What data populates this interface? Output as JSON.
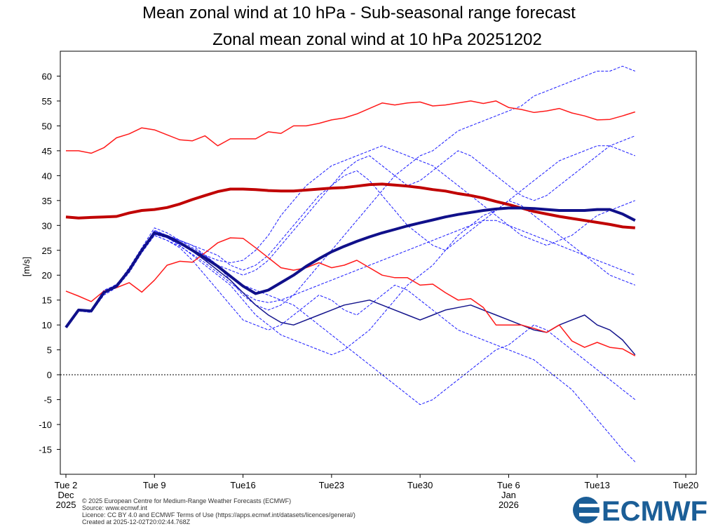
{
  "chart_data": {
    "type": "line",
    "title": "Mean zonal wind at 10 hPa - Sub-seasonal range forecast",
    "subtitle": "Zonal mean zonal wind at 10 hPa 20251202",
    "y_label": "[m/s]",
    "x": [
      "2025-12-02",
      "2025-12-03",
      "2025-12-04",
      "2025-12-05",
      "2025-12-06",
      "2025-12-07",
      "2025-12-08",
      "2025-12-09",
      "2025-12-10",
      "2025-12-11",
      "2025-12-12",
      "2025-12-13",
      "2025-12-14",
      "2025-12-15",
      "2025-12-16",
      "2025-12-17",
      "2025-12-18",
      "2025-12-19",
      "2025-12-20",
      "2025-12-21",
      "2025-12-22",
      "2025-12-23",
      "2025-12-24",
      "2025-12-25",
      "2025-12-26",
      "2025-12-27",
      "2025-12-28",
      "2025-12-29",
      "2025-12-30",
      "2025-12-31",
      "2026-01-01",
      "2026-01-02",
      "2026-01-03",
      "2026-01-04",
      "2026-01-05",
      "2026-01-06",
      "2026-01-07",
      "2026-01-08",
      "2026-01-09",
      "2026-01-10",
      "2026-01-11",
      "2026-01-12",
      "2026-01-13",
      "2026-01-14",
      "2026-01-15",
      "2026-01-16"
    ],
    "xlim": [
      "2025-12-02",
      "2026-01-20"
    ],
    "xticks": [
      {
        "value": "2025-12-02",
        "label": "Tue 2"
      },
      {
        "value": "2025-12-09",
        "label": "Tue 9"
      },
      {
        "value": "2025-12-16",
        "label": "Tue16"
      },
      {
        "value": "2025-12-23",
        "label": "Tue23"
      },
      {
        "value": "2025-12-30",
        "label": "Tue30"
      },
      {
        "value": "2026-01-06",
        "label": "Tue 6"
      },
      {
        "value": "2026-01-13",
        "label": "Tue13"
      },
      {
        "value": "2026-01-20",
        "label": "Tue20"
      }
    ],
    "x_month_labels": [
      {
        "value": "2025-12-02",
        "label": "Dec"
      },
      {
        "value": "2026-01-06",
        "label": "Jan"
      }
    ],
    "x_year_labels": [
      {
        "value": "2025-12-02",
        "label": "2025"
      },
      {
        "value": "2026-01-06",
        "label": "2026"
      }
    ],
    "ylim": [
      -20,
      65
    ],
    "yticks": [
      -15,
      -10,
      -5,
      0,
      5,
      10,
      15,
      20,
      25,
      30,
      35,
      40,
      45,
      50,
      55,
      60
    ],
    "zero_line": true,
    "series": [
      {
        "color": "#1a1aff",
        "width": 1,
        "dashed": true,
        "values": [
          9.5,
          13,
          13,
          16.8,
          18,
          21.5,
          25.5,
          29.5,
          28.5,
          27,
          26,
          24,
          22,
          19,
          16,
          14,
          13,
          14,
          16,
          19,
          22,
          25,
          28,
          31,
          34,
          37,
          40,
          42,
          44,
          45,
          47,
          49,
          50,
          51,
          52,
          53,
          54,
          56,
          57,
          58,
          59,
          60,
          61,
          61,
          62,
          61
        ]
      },
      {
        "color": "#1a1aff",
        "width": 1,
        "dashed": true,
        "values": [
          9.5,
          12.8,
          12.5,
          16,
          17.5,
          20.5,
          24.5,
          28,
          27,
          25.5,
          23,
          20,
          17,
          14,
          11,
          10,
          9,
          10,
          12,
          14,
          16,
          15,
          13,
          12,
          14,
          16,
          18,
          17,
          15,
          13,
          11,
          9,
          8,
          7,
          6,
          5,
          4,
          3,
          1,
          -1,
          -3,
          -6,
          -9,
          -12,
          -15,
          -17.5
        ]
      },
      {
        "color": "#1a1aff",
        "width": 1,
        "dashed": true,
        "values": [
          9.5,
          13,
          13,
          17,
          18,
          21,
          25,
          29,
          28,
          27,
          26,
          25,
          24,
          22,
          21,
          22,
          24,
          27,
          30,
          33,
          36,
          38,
          41,
          43,
          44,
          42,
          40,
          38,
          39,
          41,
          43,
          45,
          44,
          42,
          40,
          38,
          36,
          35,
          36,
          38,
          40,
          42,
          44,
          46,
          47,
          48
        ]
      },
      {
        "color": "#1a1aff",
        "width": 1,
        "dashed": true,
        "values": [
          9.5,
          13.2,
          12.8,
          16.5,
          18,
          21,
          25,
          28.5,
          27.5,
          26,
          24,
          22,
          20,
          18,
          15,
          12,
          10,
          8,
          7,
          6,
          5,
          4,
          5,
          7,
          9,
          12,
          15,
          18,
          20,
          22,
          25,
          28,
          30,
          32,
          33,
          35,
          34,
          32,
          30,
          28,
          26,
          24,
          22,
          20,
          19,
          18
        ]
      },
      {
        "color": "#1a1aff",
        "width": 1,
        "dashed": true,
        "values": [
          9.5,
          13,
          12.6,
          16.4,
          17.9,
          21.2,
          25.2,
          29,
          28,
          26.5,
          25,
          23,
          22,
          21,
          20,
          21,
          23,
          26,
          29,
          32,
          35,
          38,
          40,
          41,
          39,
          36,
          33,
          30,
          28,
          26,
          25,
          27,
          29,
          31,
          33,
          35,
          37,
          39,
          41,
          43,
          44,
          45,
          46,
          46,
          45,
          44
        ]
      },
      {
        "color": "#1a1aff",
        "width": 1,
        "dashed": true,
        "values": [
          9.5,
          13,
          13,
          16.7,
          18.2,
          21,
          25,
          28.8,
          28,
          27,
          25.5,
          24,
          22,
          20,
          18,
          17,
          16,
          15,
          14,
          12,
          10,
          8,
          6,
          4,
          2,
          0,
          -2,
          -4,
          -6,
          -5,
          -3,
          -1,
          1,
          3,
          5,
          6,
          8,
          10,
          9,
          7,
          5,
          3,
          1,
          -1,
          -3,
          -5
        ]
      },
      {
        "color": "#1a1aff",
        "width": 1,
        "dashed": true,
        "values": [
          9.5,
          13.1,
          12.9,
          16.6,
          17.7,
          20.8,
          24.8,
          28.2,
          27.5,
          26.2,
          25,
          24,
          23,
          22.5,
          23,
          25,
          28,
          32,
          35,
          38,
          40,
          42,
          43,
          44,
          45,
          46,
          45,
          44,
          43,
          42,
          40,
          38,
          36,
          34,
          32,
          30,
          28,
          27,
          26,
          27,
          28,
          30,
          32,
          33,
          34,
          35
        ]
      },
      {
        "color": "#1a1aff",
        "width": 1,
        "dashed": true,
        "values": [
          9.5,
          12.9,
          12.7,
          16.3,
          17.6,
          20.7,
          24.6,
          28,
          27,
          25.8,
          24.2,
          22.5,
          20.5,
          18.5,
          16.5,
          15,
          14.5,
          15,
          16,
          17,
          18,
          19,
          20,
          21,
          22,
          23,
          24,
          25,
          26,
          27,
          28,
          29,
          30,
          31,
          31,
          30,
          29,
          28,
          27,
          26,
          25,
          24,
          23,
          22,
          21,
          20
        ]
      },
      {
        "color": "#14148c",
        "width": 1.5,
        "dashed": false,
        "values": [
          9.5,
          13,
          12.9,
          16.6,
          17.9,
          21,
          25,
          28.6,
          27.8,
          26.4,
          24.8,
          23,
          21,
          19,
          16.5,
          14,
          12,
          10.5,
          10,
          11,
          12,
          13,
          14,
          14.5,
          15,
          14,
          13,
          12,
          11,
          12,
          13,
          13.5,
          14,
          13,
          12,
          11,
          10,
          9,
          8.5,
          10,
          11,
          12,
          10,
          9,
          7,
          4
        ]
      },
      {
        "color": "#ff1a1a",
        "width": 1.5,
        "dashed": false,
        "values": [
          45,
          45,
          44.5,
          45.6,
          47.6,
          48.4,
          49.6,
          49.2,
          48.2,
          47.2,
          47,
          48,
          46,
          47.4,
          47.4,
          47.4,
          48.8,
          48.5,
          50,
          50,
          50.5,
          51.2,
          51.6,
          52.4,
          53.5,
          54.6,
          54.2,
          54.6,
          54.8,
          54,
          54.2,
          54.6,
          55,
          54.5,
          55,
          53.7,
          53.3,
          52.7,
          53,
          53.5,
          52.6,
          52,
          51.2,
          51.3,
          52,
          52.8
        ]
      },
      {
        "color": "#ff1a1a",
        "width": 1.5,
        "dashed": false,
        "values": [
          16.8,
          15.8,
          14.7,
          16.8,
          17.5,
          18.5,
          16.6,
          19,
          22,
          22.8,
          22.6,
          24.5,
          26.5,
          27.5,
          27.4,
          25.5,
          23.5,
          21.5,
          21,
          21.5,
          22.5,
          21.5,
          22,
          23,
          21.5,
          20,
          19.5,
          19.5,
          18,
          18.2,
          16.5,
          15,
          15.3,
          13.5,
          10,
          10,
          10,
          9.3,
          8.5,
          10,
          6.8,
          5.5,
          6.5,
          5.5,
          5.2,
          3.8
        ]
      },
      {
        "color": "#c00000",
        "width": 4,
        "dashed": false,
        "values": [
          31.7,
          31.5,
          31.6,
          31.7,
          31.8,
          32.5,
          33,
          33.2,
          33.6,
          34.3,
          35.2,
          36,
          36.8,
          37.3,
          37.3,
          37.2,
          37,
          36.9,
          36.9,
          37.1,
          37.3,
          37.5,
          37.6,
          37.9,
          38.2,
          38.3,
          38.1,
          37.9,
          37.6,
          37.2,
          36.9,
          36.4,
          36,
          35.5,
          34.8,
          34.2,
          33.5,
          32.8,
          32.3,
          31.8,
          31.4,
          31,
          30.6,
          30.2,
          29.7,
          29.5
        ]
      },
      {
        "color": "#10108a",
        "width": 4,
        "dashed": false,
        "values": [
          9.5,
          13,
          12.8,
          16.5,
          17.8,
          21,
          25,
          28.5,
          27.8,
          26.5,
          25,
          23.5,
          21.8,
          19.8,
          17.8,
          16.3,
          17,
          18.5,
          20,
          21.8,
          23.3,
          24.7,
          25.8,
          26.8,
          27.7,
          28.5,
          29.2,
          29.9,
          30.5,
          31.1,
          31.7,
          32.2,
          32.6,
          33,
          33.3,
          33.5,
          33.5,
          33.4,
          33.2,
          33,
          33,
          33,
          33.2,
          33.2,
          32.3,
          31
        ]
      }
    ]
  },
  "footer": {
    "lines": [
      "© 2025 European Centre for Medium-Range Weather Forecasts (ECMWF)",
      "Source: www.ecmwf.int",
      "Licence: CC BY 4.0 and ECMWF Terms of Use (https://apps.ecmwf.int/datasets/licences/general/)",
      "Created at 2025-12-02T20:02:44.768Z"
    ],
    "logo_text": "ECMWF"
  }
}
